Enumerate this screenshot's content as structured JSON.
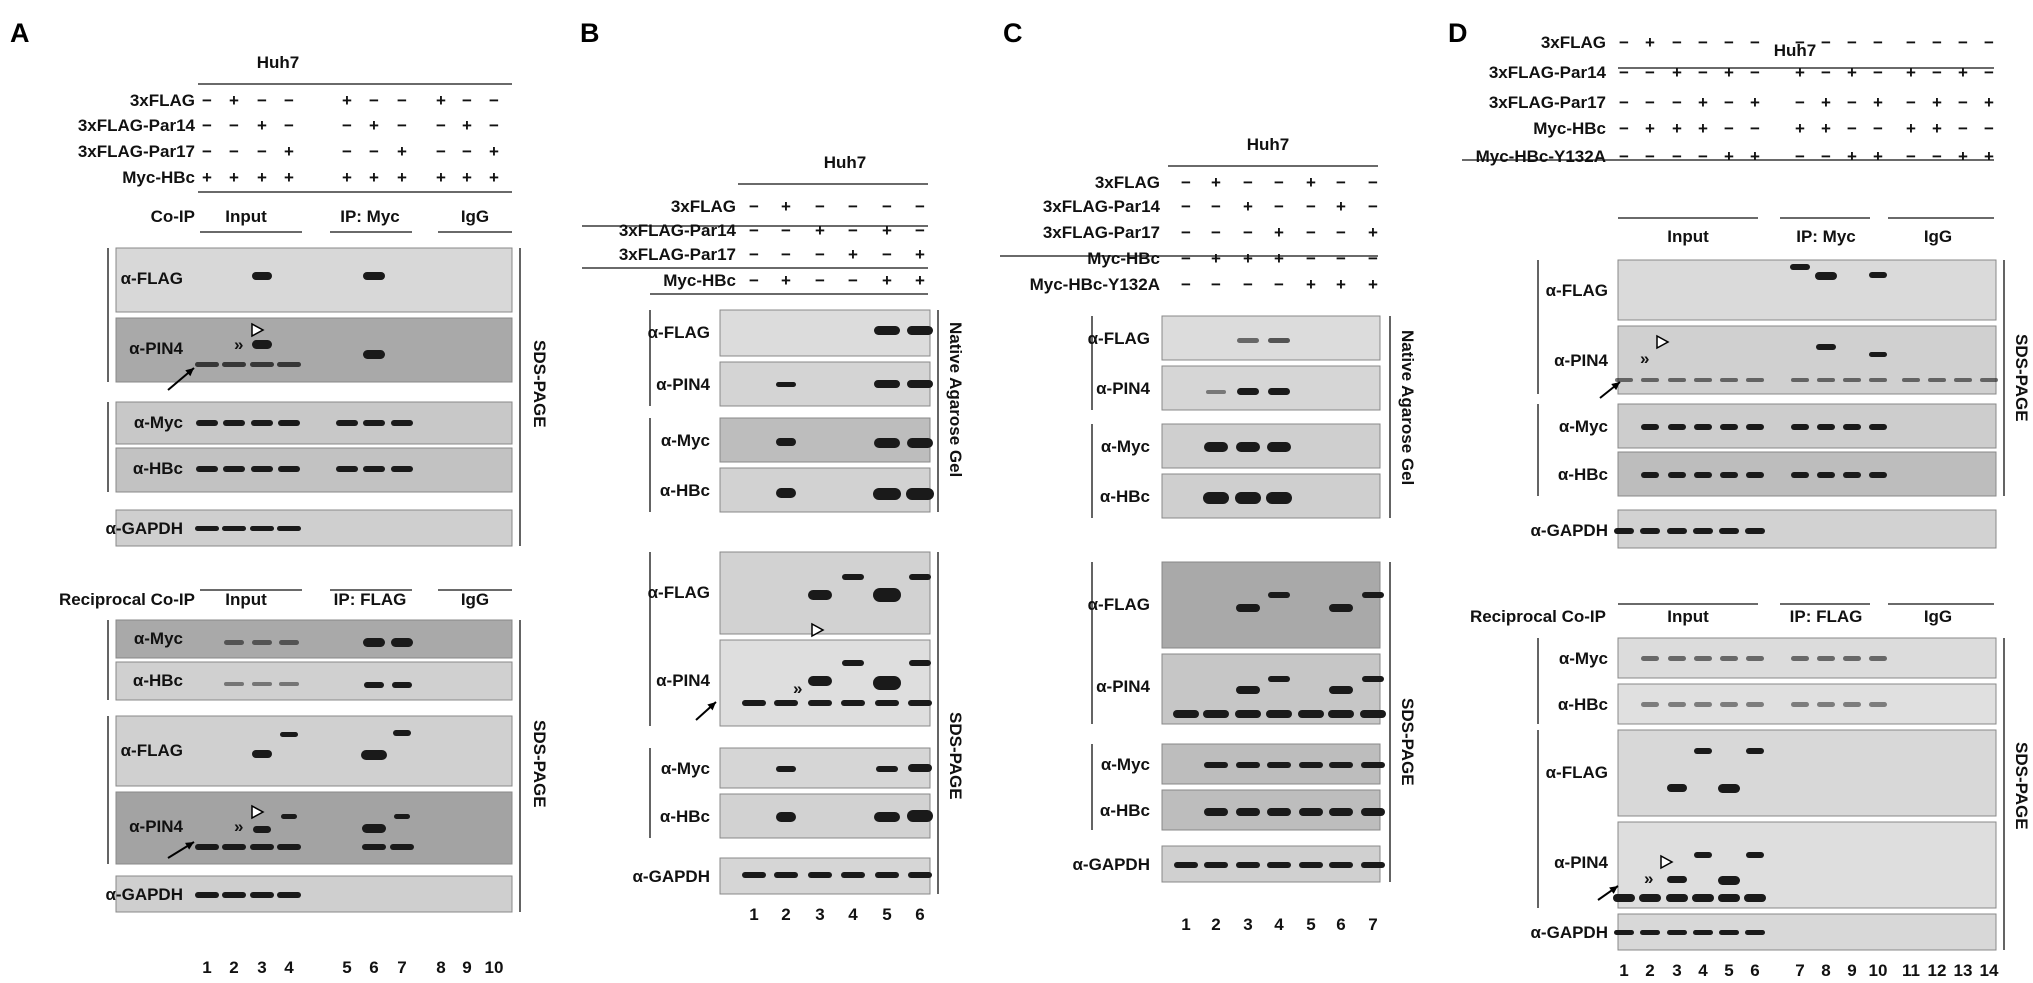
{
  "panels": {
    "A": {
      "letter": "A",
      "cell_line": "Huh7",
      "rows": [
        {
          "label": "3xFLAG",
          "signs": [
            "−",
            "+",
            "−",
            "−",
            "+",
            "−",
            "−",
            "+",
            "−",
            "−"
          ]
        },
        {
          "label": "3xFLAG-Par14",
          "signs": [
            "−",
            "−",
            "+",
            "−",
            "−",
            "+",
            "−",
            "−",
            "+",
            "−"
          ]
        },
        {
          "label": "3xFLAG-Par17",
          "signs": [
            "−",
            "−",
            "−",
            "+",
            "−",
            "−",
            "+",
            "−",
            "−",
            "+"
          ]
        },
        {
          "label": "Myc-HBc",
          "signs": [
            "+",
            "+",
            "+",
            "+",
            "+",
            "+",
            "+",
            "+",
            "+",
            "+"
          ]
        }
      ],
      "coip": {
        "label": "Co-IP",
        "groups": [
          "Input",
          "IP: Myc",
          "IgG"
        ]
      },
      "reciprocal": {
        "label": "Reciprocal Co-IP",
        "groups": [
          "Input",
          "IP: FLAG",
          "IgG"
        ]
      },
      "blots_top": [
        "α-FLAG",
        "α-PIN4",
        "α-Myc",
        "α-HBc",
        "α-GAPDH"
      ],
      "blots_bottom": [
        "α-Myc",
        "α-HBc",
        "α-FLAG",
        "α-PIN4",
        "α-GAPDH"
      ],
      "gel": "SDS-PAGE",
      "lanes": [
        "1",
        "2",
        "3",
        "4",
        "5",
        "6",
        "7",
        "8",
        "9",
        "10"
      ]
    },
    "B": {
      "letter": "B",
      "cell_line": "Huh7",
      "rows": [
        {
          "label": "3xFLAG",
          "signs": [
            "−",
            "+",
            "−",
            "−",
            "−",
            "−"
          ]
        },
        {
          "label": "3xFLAG-Par14",
          "signs": [
            "−",
            "−",
            "+",
            "−",
            "+",
            "−"
          ]
        },
        {
          "label": "3xFLAG-Par17",
          "signs": [
            "−",
            "−",
            "−",
            "+",
            "−",
            "+"
          ]
        },
        {
          "label": "Myc-HBc",
          "signs": [
            "−",
            "+",
            "−",
            "−",
            "+",
            "+"
          ]
        }
      ],
      "blots_native": [
        "α-FLAG",
        "α-PIN4",
        "α-Myc",
        "α-HBc"
      ],
      "blots_sds": [
        "α-FLAG",
        "α-PIN4",
        "α-Myc",
        "α-HBc",
        "α-GAPDH"
      ],
      "gel_native": "Native Agarose Gel",
      "gel_sds": "SDS-PAGE",
      "lanes": [
        "1",
        "2",
        "3",
        "4",
        "5",
        "6"
      ]
    },
    "C": {
      "letter": "C",
      "cell_line": "Huh7",
      "rows": [
        {
          "label": "3xFLAG",
          "signs": [
            "−",
            "+",
            "−",
            "−",
            "+",
            "−",
            "−"
          ]
        },
        {
          "label": "3xFLAG-Par14",
          "signs": [
            "−",
            "−",
            "+",
            "−",
            "−",
            "+",
            "−"
          ]
        },
        {
          "label": "3xFLAG-Par17",
          "signs": [
            "−",
            "−",
            "−",
            "+",
            "−",
            "−",
            "+"
          ]
        },
        {
          "label": "Myc-HBc",
          "signs": [
            "−",
            "+",
            "+",
            "+",
            "−",
            "−",
            "−"
          ]
        },
        {
          "label": "Myc-HBc-Y132A",
          "signs": [
            "−",
            "−",
            "−",
            "−",
            "+",
            "+",
            "+"
          ]
        }
      ],
      "blots_native": [
        "α-FLAG",
        "α-PIN4",
        "α-Myc",
        "α-HBc"
      ],
      "blots_sds": [
        "α-FLAG",
        "α-PIN4",
        "α-Myc",
        "α-HBc",
        "α-GAPDH"
      ],
      "gel_native": "Native Agarose Gel",
      "gel_sds": "SDS-PAGE",
      "lanes": [
        "1",
        "2",
        "3",
        "4",
        "5",
        "6",
        "7"
      ]
    },
    "D": {
      "letter": "D",
      "cell_line": "Huh7",
      "rows": [
        {
          "label": "3xFLAG",
          "signs": [
            "−",
            "+",
            "−",
            "−",
            "−",
            "−",
            "−",
            "−",
            "−",
            "−",
            "−",
            "−",
            "−",
            "−"
          ]
        },
        {
          "label": "3xFLAG-Par14",
          "signs": [
            "−",
            "−",
            "+",
            "−",
            "+",
            "−",
            "+",
            "−",
            "+",
            "−",
            "+",
            "−",
            "+",
            "−"
          ]
        },
        {
          "label": "3xFLAG-Par17",
          "signs": [
            "−",
            "−",
            "−",
            "+",
            "−",
            "+",
            "−",
            "+",
            "−",
            "+",
            "−",
            "+",
            "−",
            "+"
          ]
        },
        {
          "label": "Myc-HBc",
          "signs": [
            "−",
            "+",
            "+",
            "+",
            "−",
            "−",
            "+",
            "+",
            "−",
            "−",
            "+",
            "+",
            "−",
            "−"
          ]
        },
        {
          "label": "Myc-HBc-Y132A",
          "signs": [
            "−",
            "−",
            "−",
            "−",
            "+",
            "+",
            "−",
            "−",
            "+",
            "+",
            "−",
            "−",
            "+",
            "+"
          ]
        }
      ],
      "coip": {
        "groups": [
          "Input",
          "IP: Myc",
          "IgG"
        ]
      },
      "reciprocal": {
        "label": "Reciprocal Co-IP",
        "groups": [
          "Input",
          "IP: FLAG",
          "IgG"
        ]
      },
      "blots_top": [
        "α-FLAG",
        "α-PIN4",
        "α-Myc",
        "α-HBc",
        "α-GAPDH"
      ],
      "blots_bottom": [
        "α-Myc",
        "α-HBc",
        "α-FLAG",
        "α-PIN4",
        "α-GAPDH"
      ],
      "gel": "SDS-PAGE",
      "lanes": [
        "1",
        "2",
        "3",
        "4",
        "5",
        "6",
        "7",
        "8",
        "9",
        "10",
        "11",
        "12",
        "13",
        "14"
      ]
    }
  },
  "markers": {
    "double": "»"
  },
  "colors": {
    "blot_bg_light": "#d9d9d9",
    "blot_bg_dark": "#a8a8a8",
    "band": "#1a1a1a"
  }
}
